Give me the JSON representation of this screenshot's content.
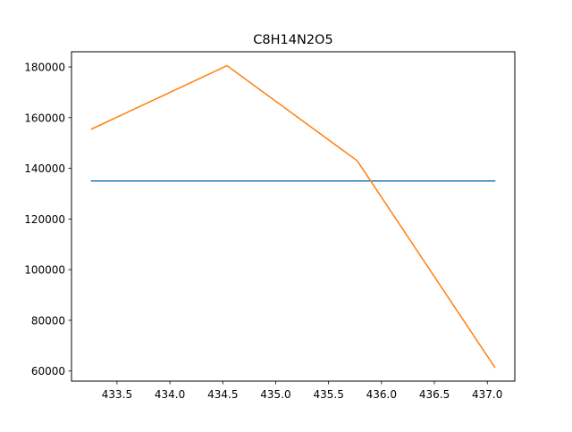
{
  "chart_data": {
    "type": "line",
    "title": "C8H14N2O5",
    "xlabel": "",
    "ylabel": "",
    "xlim": [
      433.07,
      437.26
    ],
    "ylim": [
      56000,
      186000
    ],
    "x_ticks": [
      433.5,
      434.0,
      434.5,
      435.0,
      435.5,
      436.0,
      436.5,
      437.0
    ],
    "x_tick_labels": [
      "433.5",
      "434.0",
      "434.5",
      "435.0",
      "435.5",
      "436.0",
      "436.5",
      "437.0"
    ],
    "y_ticks": [
      60000,
      80000,
      100000,
      120000,
      140000,
      160000,
      180000
    ],
    "y_tick_labels": [
      "60000",
      "80000",
      "100000",
      "120000",
      "140000",
      "160000",
      "180000"
    ],
    "grid": false,
    "legend": "none",
    "series": [
      {
        "color": "#1f77b4",
        "x": [
          433.26,
          437.07
        ],
        "y": [
          135000,
          135000
        ]
      },
      {
        "color": "#ff7f0e",
        "x": [
          433.26,
          434.54,
          435.77,
          437.07
        ],
        "y": [
          155500,
          180500,
          143000,
          61500
        ]
      }
    ]
  }
}
